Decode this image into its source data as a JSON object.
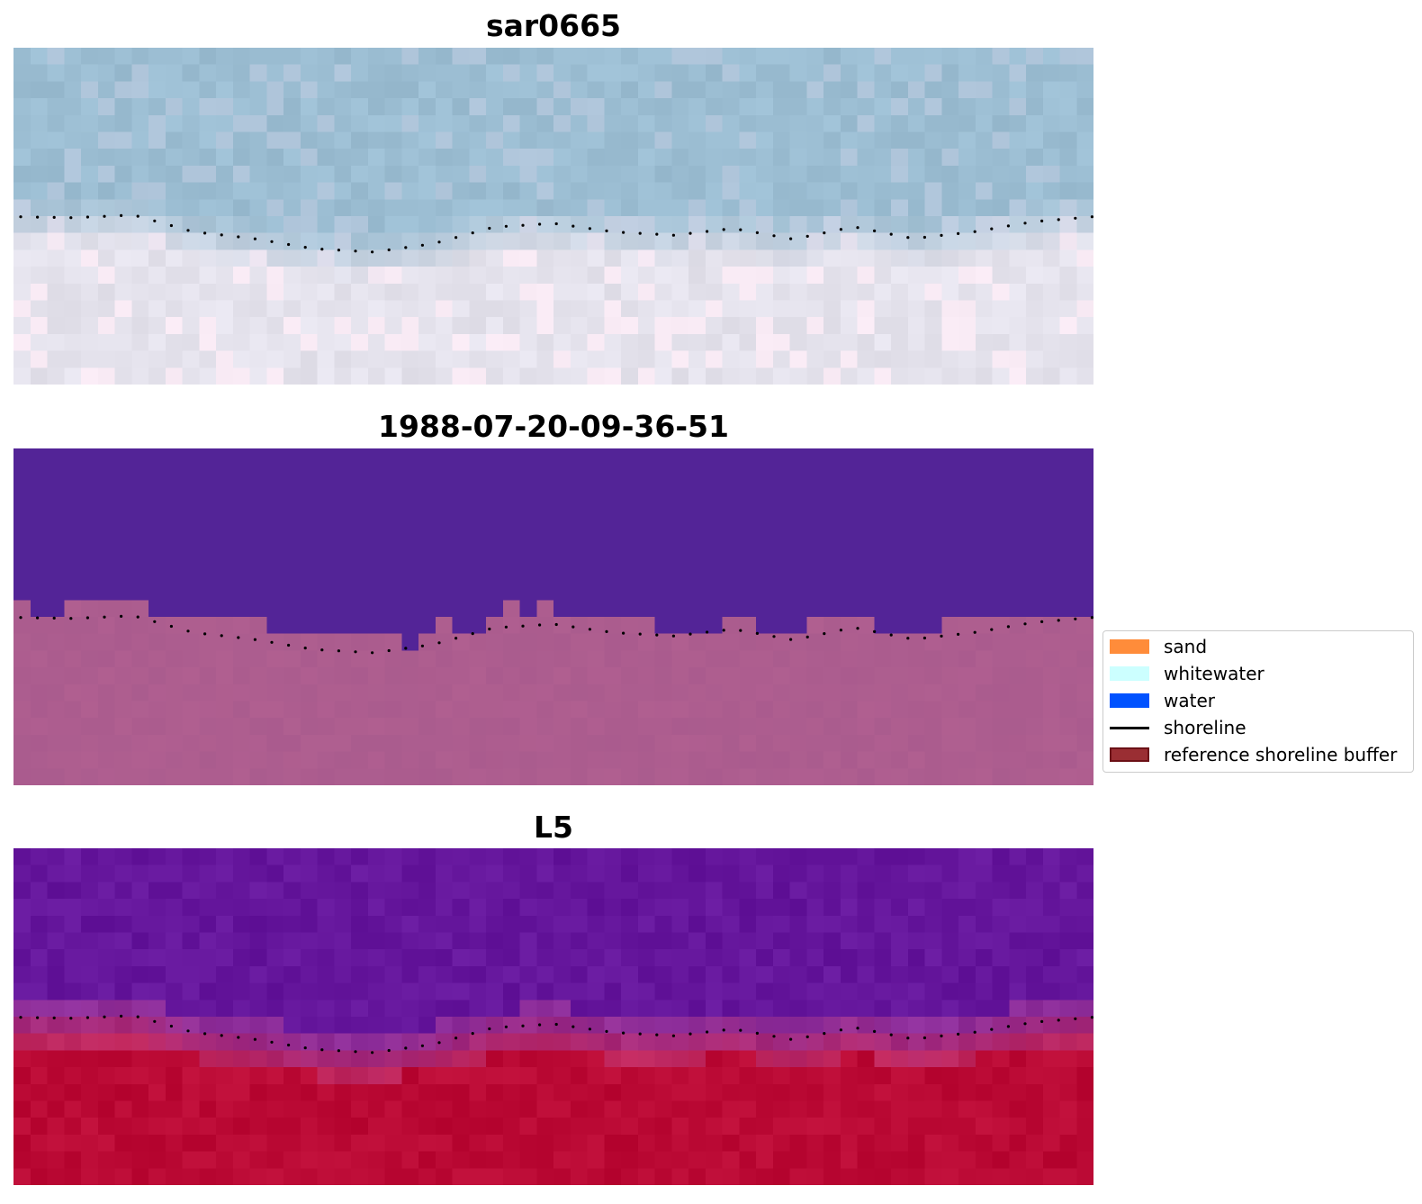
{
  "panels": [
    {
      "title": "sar0665",
      "style": "sar"
    },
    {
      "title": "1988-07-20-09-36-51",
      "style": "classified"
    },
    {
      "title": "L5",
      "style": "index"
    }
  ],
  "legend": {
    "items": [
      {
        "label": "sand",
        "color": "#ff8c3a",
        "kind": "patch"
      },
      {
        "label": "whitewater",
        "color": "#ccffff",
        "kind": "patch"
      },
      {
        "label": "water",
        "color": "#0052ff",
        "kind": "patch"
      },
      {
        "label": "shoreline",
        "color": "#000000",
        "kind": "line"
      },
      {
        "label": "reference shoreline buffer",
        "color": "#9a2e33",
        "edge": "#6b1016",
        "kind": "patch"
      }
    ]
  },
  "colors": {
    "sar_water": "#9dbfd4",
    "sar_land": "#e6e4ee",
    "classified_water": "#532497",
    "classified_land": "#b05f90",
    "index_water": "#65169c",
    "index_land": "#bb0a35",
    "shoreline_dots": "#000000"
  },
  "shoreline_profile": [
    0.515,
    0.518,
    0.51,
    0.56,
    0.58,
    0.61,
    0.62,
    0.595,
    0.546,
    0.535,
    0.56,
    0.57,
    0.55,
    0.582,
    0.545,
    0.58,
    0.56,
    0.53,
    0.515
  ]
}
